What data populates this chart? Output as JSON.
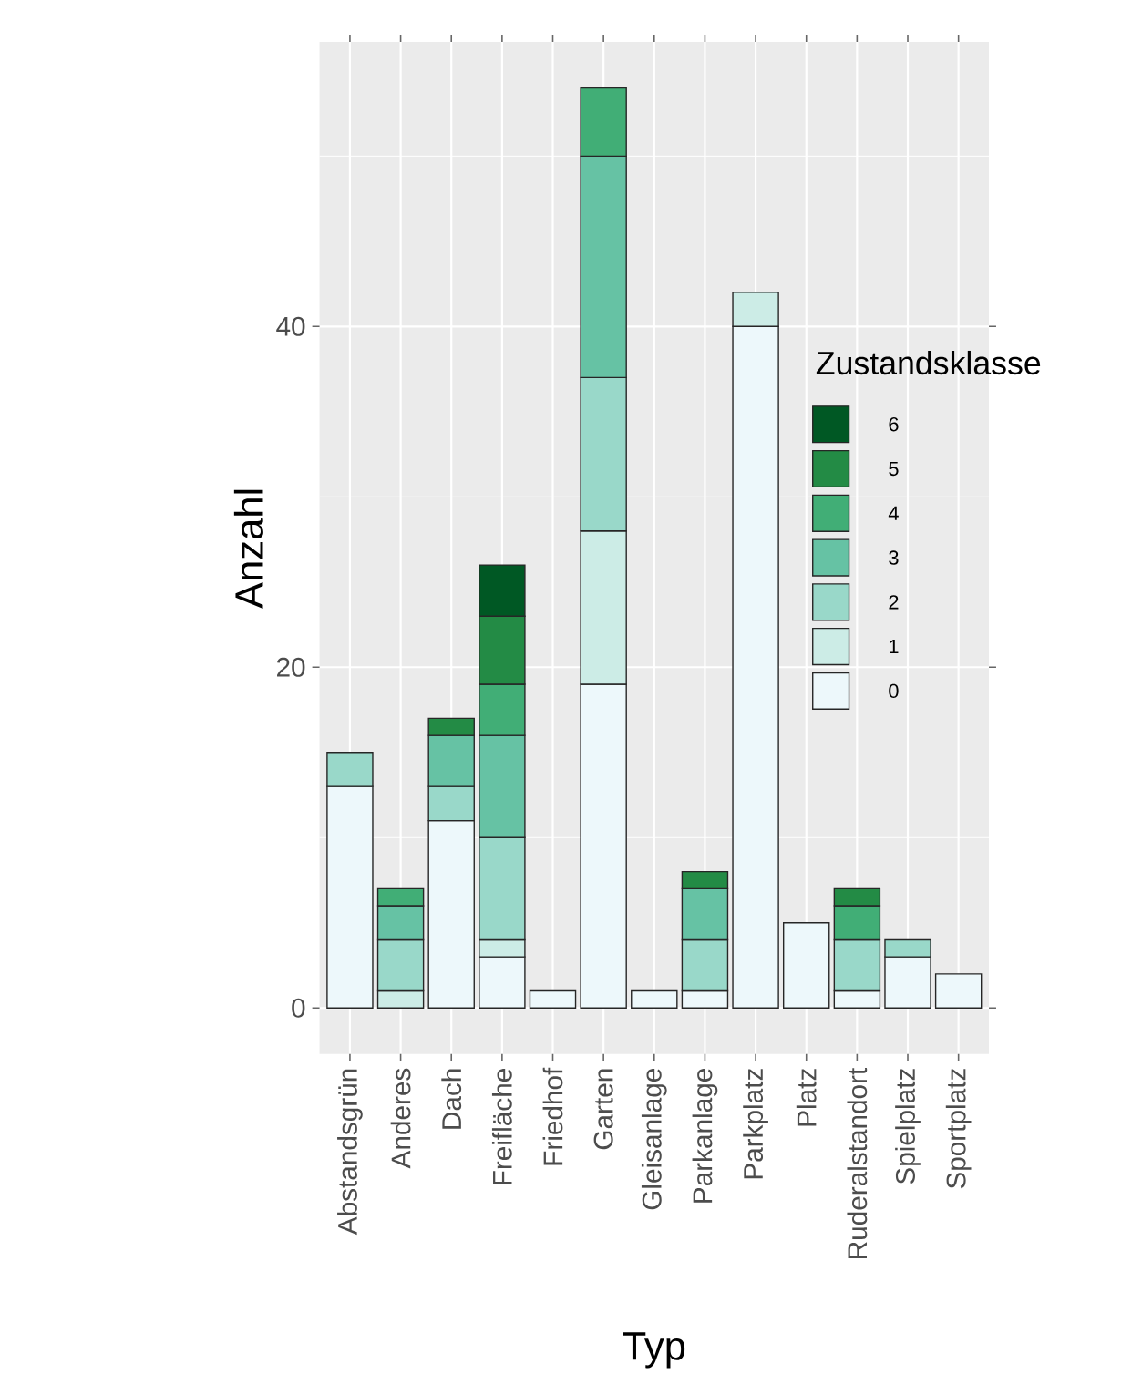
{
  "chart_data": {
    "type": "bar",
    "stacked": true,
    "xlabel": "Typ",
    "ylabel": "Anzahl",
    "legend_title": "Zustandsklasse",
    "legend": "right",
    "grid": true,
    "categories": [
      "Abstandsgrün",
      "Anderes",
      "Dach",
      "Freifläche",
      "Friedhof",
      "Garten",
      "Gleisanlage",
      "Parkanlage",
      "Parkplatz",
      "Platz",
      "Ruderalstandort",
      "Spielplatz",
      "Sportplatz"
    ],
    "ylim": [
      -2.7,
      56.7
    ],
    "yticks": [
      0,
      20,
      40
    ],
    "series": [
      {
        "name": "0",
        "color": "#edf8fb",
        "values": [
          13,
          null,
          11,
          3,
          1,
          19,
          1,
          1,
          40,
          5,
          1,
          3,
          2
        ]
      },
      {
        "name": "1",
        "color": "#ccece6",
        "values": [
          null,
          1,
          null,
          1,
          null,
          9,
          null,
          null,
          2,
          null,
          null,
          null,
          null
        ]
      },
      {
        "name": "2",
        "color": "#99d8c9",
        "values": [
          2,
          3,
          2,
          6,
          null,
          9,
          null,
          3,
          null,
          null,
          3,
          1,
          null
        ]
      },
      {
        "name": "3",
        "color": "#66c2a4",
        "values": [
          null,
          2,
          3,
          6,
          null,
          13,
          null,
          3,
          null,
          null,
          null,
          null,
          null
        ]
      },
      {
        "name": "4",
        "color": "#41ae76",
        "values": [
          null,
          1,
          null,
          3,
          null,
          4,
          null,
          null,
          null,
          null,
          2,
          null,
          null
        ]
      },
      {
        "name": "5",
        "color": "#238b45",
        "values": [
          null,
          null,
          1,
          4,
          null,
          null,
          null,
          1,
          null,
          null,
          1,
          null,
          null
        ]
      },
      {
        "name": "6",
        "color": "#005824",
        "values": [
          null,
          null,
          null,
          3,
          null,
          null,
          null,
          null,
          null,
          null,
          null,
          null,
          null
        ]
      }
    ]
  }
}
